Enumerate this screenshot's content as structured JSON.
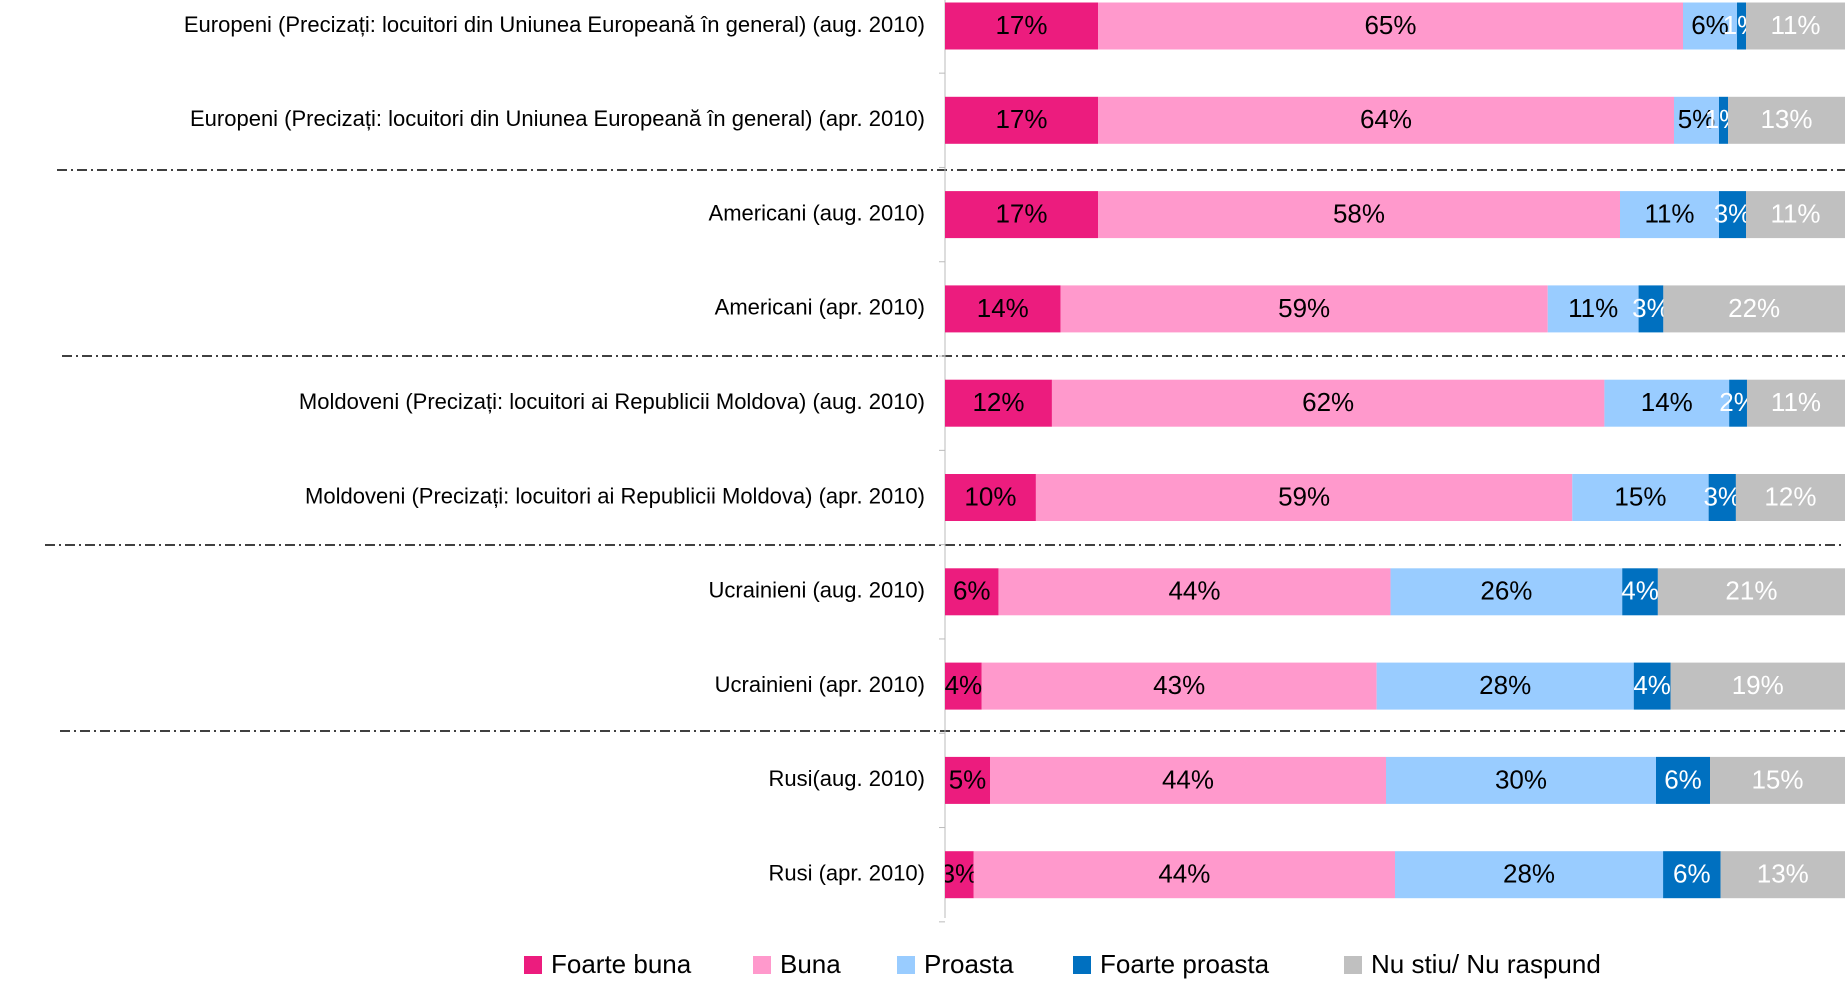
{
  "chart_data": {
    "type": "stacked_bar_horizontal",
    "categories": [
      "Europeni (Precizați: locuitori din Uniunea Europeană în general) (aug. 2010)",
      "Europeni (Precizați: locuitori din Uniunea Europeană în general) (apr. 2010)",
      "Americani (aug. 2010)",
      "Americani (apr. 2010)",
      "Moldoveni (Precizați: locuitori ai Republicii Moldova) (aug. 2010)",
      "Moldoveni (Precizați: locuitori ai Republicii Moldova) (apr. 2010)",
      "Ucrainieni (aug. 2010)",
      "Ucrainieni (apr. 2010)",
      "Rusi(aug. 2010)",
      "Rusi (apr. 2010)"
    ],
    "series": [
      {
        "name": "Foarte buna",
        "color": "#ec1c7e",
        "label_color": "#000000",
        "values": [
          17,
          17,
          17,
          14,
          12,
          10,
          6,
          4,
          5,
          3
        ]
      },
      {
        "name": "Buna",
        "color": "#ff99cc",
        "label_color": "#000000",
        "values": [
          65,
          64,
          58,
          59,
          62,
          59,
          44,
          43,
          44,
          44
        ]
      },
      {
        "name": "Proasta",
        "color": "#99ccff",
        "label_color": "#000000",
        "values": [
          6,
          5,
          11,
          11,
          14,
          15,
          26,
          28,
          30,
          28
        ]
      },
      {
        "name": "Foarte proasta",
        "color": "#0070c0",
        "label_color": "#ffffff",
        "values": [
          1,
          1,
          3,
          3,
          2,
          3,
          4,
          4,
          6,
          6
        ]
      },
      {
        "name": "Nu stiu/ Nu raspund",
        "color": "#c0c0c0",
        "label_color": "#ffffff",
        "values": [
          11,
          13,
          11,
          22,
          11,
          12,
          21,
          19,
          15,
          13
        ]
      }
    ],
    "value_labels": [
      [
        "17%",
        "17%",
        "17%",
        "14%",
        "12%",
        "10%",
        "6%",
        "4%",
        "5%",
        "3%"
      ],
      [
        "65%",
        "64%",
        "58%",
        "59%",
        "62%",
        "59%",
        "44%",
        "43%",
        "44%",
        "44%"
      ],
      [
        "6%",
        "5%",
        "11%",
        "11%",
        "14%",
        "15%",
        "26%",
        "28%",
        "30%",
        "28%"
      ],
      [
        "1%",
        "1%",
        "3%",
        "3%",
        "2%",
        "3%",
        "4%",
        "4%",
        "6%",
        "6%"
      ],
      [
        "11%",
        "13%",
        "11%",
        "22%",
        "11%",
        "12%",
        "21%",
        "19%",
        "15%",
        "13%"
      ]
    ],
    "legend": "bottom"
  }
}
